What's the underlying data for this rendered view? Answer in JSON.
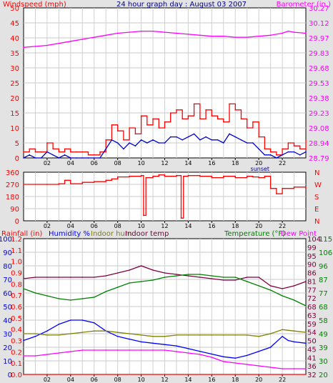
{
  "title": "24 hour graph day : August 03 2007",
  "colors": {
    "windspeed": "#ff0000",
    "gust": "#ff0000",
    "avg_wind": "#0000cc",
    "barometer": "#ff00ff",
    "direction": "#ff0000",
    "rainfall": "#ff0000",
    "humidity": "#0000ff",
    "indoor_hum": "#808000",
    "indoor_temp": "#800040",
    "temperature": "#008000",
    "dew_point": "#ff00ff"
  },
  "chart_data": [
    {
      "type": "line",
      "name": "wind-barometer",
      "left_label": "Windspeed (mph)",
      "right_label": "Barometer (in.)",
      "left_ticks": [
        "0",
        "5",
        "10",
        "15",
        "20",
        "25",
        "30",
        "35",
        "40",
        "45",
        "50"
      ],
      "right_ticks": [
        "28.79",
        "28.94",
        "29.08",
        "29.23",
        "29.38",
        "29.53",
        "29.68",
        "29.83",
        "29.97",
        "30.12",
        "30.27"
      ],
      "ylim_left": [
        0,
        50
      ],
      "ylim_right": [
        28.79,
        30.27
      ],
      "x_ticks": [
        "02",
        "04",
        "06",
        "08",
        "10",
        "12",
        "14",
        "16",
        "18",
        "20",
        "22"
      ],
      "annotation": "sunset",
      "annotation_hour": 20.1,
      "xlim": [
        0,
        24
      ],
      "grid": true,
      "series": [
        {
          "key": "gust",
          "x": [
            0,
            0.5,
            1,
            1.5,
            2,
            2.5,
            3,
            3.5,
            4,
            4.5,
            5,
            5.5,
            6,
            6.5,
            7,
            7.5,
            8,
            8.5,
            9,
            9.5,
            10,
            10.5,
            11,
            11.5,
            12,
            12.5,
            13,
            13.5,
            14,
            14.5,
            15,
            15.5,
            16,
            16.5,
            17,
            17.5,
            18,
            18.5,
            19,
            19.5,
            20,
            20.5,
            21,
            21.5,
            22,
            22.5,
            23,
            23.5,
            24
          ],
          "y": [
            2,
            3,
            2,
            2,
            5,
            3,
            2,
            3,
            2,
            2,
            2,
            1,
            1,
            2,
            6,
            11,
            9,
            6,
            10,
            8,
            14,
            11,
            13,
            10,
            12,
            15,
            16,
            13,
            14,
            18,
            13,
            16,
            14,
            13,
            12,
            18,
            16,
            13,
            10,
            12,
            7,
            3,
            2,
            1,
            3,
            5,
            4,
            3,
            6
          ]
        },
        {
          "key": "avg_wind",
          "x": [
            0,
            0.5,
            1,
            1.5,
            2,
            2.5,
            3,
            3.5,
            4,
            4.5,
            5,
            5.5,
            6,
            6.5,
            7,
            7.5,
            8,
            8.5,
            9,
            9.5,
            10,
            10.5,
            11,
            11.5,
            12,
            12.5,
            13,
            13.5,
            14,
            14.5,
            15,
            15.5,
            16,
            16.5,
            17,
            17.5,
            18,
            18.5,
            19,
            19.5,
            20,
            20.5,
            21,
            21.5,
            22,
            22.5,
            23,
            23.5,
            24
          ],
          "y": [
            0,
            1,
            0,
            0,
            2,
            1,
            0,
            1,
            0,
            0,
            0,
            0,
            0,
            0,
            3,
            6,
            5,
            3,
            5,
            4,
            6,
            5,
            6,
            5,
            5,
            7,
            7,
            6,
            7,
            8,
            6,
            7,
            6,
            6,
            5,
            8,
            7,
            6,
            5,
            5,
            3,
            1,
            1,
            0,
            1,
            2,
            2,
            1,
            2
          ]
        },
        {
          "key": "barometer",
          "axis": "right",
          "x": [
            0,
            1,
            2,
            3,
            4,
            5,
            6,
            7,
            8,
            9,
            10,
            11,
            12,
            13,
            14,
            15,
            16,
            17,
            18,
            19,
            20,
            21,
            22,
            22.5,
            23,
            24
          ],
          "y": [
            29.88,
            29.89,
            29.9,
            29.92,
            29.94,
            29.96,
            29.98,
            30.0,
            30.02,
            30.03,
            30.04,
            30.04,
            30.03,
            30.02,
            30.01,
            30.0,
            29.99,
            29.99,
            29.98,
            29.98,
            29.99,
            30.0,
            30.02,
            30.04,
            30.03,
            30.02
          ]
        }
      ]
    },
    {
      "type": "line",
      "name": "wind-direction",
      "left_ticks": [
        "0",
        "90",
        "180",
        "270",
        "360"
      ],
      "right_ticks": [
        "N",
        "E",
        "S",
        "W",
        "N"
      ],
      "ylim": [
        0,
        360
      ],
      "x_ticks": [
        "02",
        "04",
        "06",
        "08",
        "10",
        "12",
        "14",
        "16",
        "18",
        "20",
        "22"
      ],
      "xlim": [
        0,
        24
      ],
      "series": [
        {
          "key": "direction",
          "x": [
            0,
            2,
            3,
            3.5,
            4,
            5,
            6,
            7,
            7.5,
            8,
            9,
            10,
            10.2,
            10.4,
            11,
            11.5,
            12,
            13,
            13.4,
            13.6,
            14,
            15,
            16,
            17,
            18,
            19,
            19.5,
            20,
            20.5,
            21,
            21.5,
            22,
            23,
            24
          ],
          "y": [
            270,
            270,
            275,
            300,
            275,
            285,
            290,
            300,
            310,
            325,
            330,
            335,
            40,
            320,
            330,
            340,
            330,
            335,
            20,
            330,
            335,
            330,
            320,
            330,
            320,
            330,
            325,
            320,
            330,
            240,
            200,
            240,
            250,
            240
          ]
        }
      ]
    },
    {
      "type": "line",
      "name": "humidity-temperature",
      "legend": [
        "Rainfall (in)",
        "Humidity %",
        "Indoor hum",
        "Indoor temp",
        "Temperature (°F)",
        "Dew Point"
      ],
      "left_ticks_humidity": [
        "0",
        "10",
        "20",
        "30",
        "40",
        "50",
        "60",
        "70",
        "80",
        "90",
        "100"
      ],
      "left_ticks_rain": [
        "0.0",
        "0.1",
        "0.2",
        "0.3",
        "0.4",
        "0.5",
        "0.6",
        "0.7",
        "0.8",
        "0.9",
        "1.0",
        "1.1",
        "1.2"
      ],
      "right_ticks_temp1": [
        "32",
        "36",
        "41",
        "45",
        "50",
        "54",
        "59",
        "63",
        "68",
        "72",
        "77",
        "81",
        "86",
        "90",
        "95",
        "99",
        "104"
      ],
      "right_ticks_temp2": [
        "20",
        "30",
        "39",
        "49",
        "58",
        "68",
        "77",
        "87",
        "96",
        "106",
        "115"
      ],
      "ylim_humidity": [
        0,
        100
      ],
      "ylim_temp": [
        20,
        115
      ],
      "x_ticks": [
        "02",
        "04",
        "06",
        "08",
        "10",
        "12",
        "14",
        "16",
        "18",
        "20",
        "22"
      ],
      "xlim": [
        0,
        24
      ],
      "series": [
        {
          "key": "rainfall",
          "x": [
            0,
            24
          ],
          "y": [
            0,
            0
          ]
        },
        {
          "key": "humidity",
          "x": [
            0,
            1,
            2,
            3,
            4,
            5,
            6,
            7,
            8,
            9,
            10,
            11,
            12,
            13,
            14,
            15,
            16,
            17,
            18,
            19,
            20,
            21,
            22,
            22.5,
            23,
            24
          ],
          "y": [
            25,
            28,
            32,
            37,
            40,
            40,
            38,
            32,
            28,
            26,
            24,
            23,
            22,
            21,
            19,
            17,
            15,
            13,
            12,
            14,
            17,
            20,
            28,
            25,
            24,
            23
          ]
        },
        {
          "key": "indoor_hum",
          "x": [
            0,
            1,
            2,
            3,
            4,
            5,
            6,
            7,
            8,
            9,
            10,
            11,
            12,
            13,
            14,
            15,
            16,
            17,
            18,
            19,
            20,
            21,
            22,
            23,
            24
          ],
          "y": [
            30,
            30,
            29,
            29,
            30,
            31,
            32,
            32,
            31,
            30,
            29,
            28,
            28,
            29,
            29,
            29,
            29,
            29,
            29,
            29,
            28,
            30,
            33,
            32,
            31
          ]
        },
        {
          "key": "indoor_temp",
          "axis": "temp",
          "x": [
            0,
            1,
            2,
            3,
            4,
            5,
            6,
            7,
            8,
            9,
            10,
            11,
            12,
            13,
            14,
            15,
            16,
            17,
            18,
            19,
            20,
            21,
            22,
            23,
            24
          ],
          "y": [
            87,
            88,
            88,
            88,
            88,
            88,
            88,
            89,
            91,
            93,
            96,
            93,
            91,
            90,
            89,
            88,
            87,
            86,
            86,
            88,
            88,
            82,
            80,
            82,
            85
          ]
        },
        {
          "key": "temperature",
          "axis": "temp",
          "x": [
            0,
            1,
            2,
            3,
            4,
            5,
            6,
            7,
            8,
            9,
            10,
            11,
            12,
            13,
            14,
            15,
            16,
            17,
            18,
            19,
            20,
            21,
            22,
            23,
            24
          ],
          "y": [
            80,
            77,
            75,
            73,
            72,
            73,
            74,
            78,
            81,
            84,
            85,
            86,
            88,
            89,
            90,
            90,
            89,
            88,
            88,
            85,
            82,
            79,
            75,
            72,
            68
          ]
        },
        {
          "key": "dew_point",
          "axis": "temp",
          "x": [
            0,
            1,
            2,
            3,
            4,
            5,
            6,
            7,
            8,
            9,
            10,
            11,
            12,
            13,
            14,
            15,
            16,
            17,
            18,
            19,
            20,
            21,
            22,
            23,
            24
          ],
          "y": [
            33,
            33,
            34,
            35,
            36,
            37,
            37,
            37,
            37,
            37,
            37,
            37,
            37,
            36,
            35,
            34,
            32,
            29,
            28,
            27,
            26,
            25,
            24,
            24,
            24
          ]
        }
      ]
    }
  ]
}
